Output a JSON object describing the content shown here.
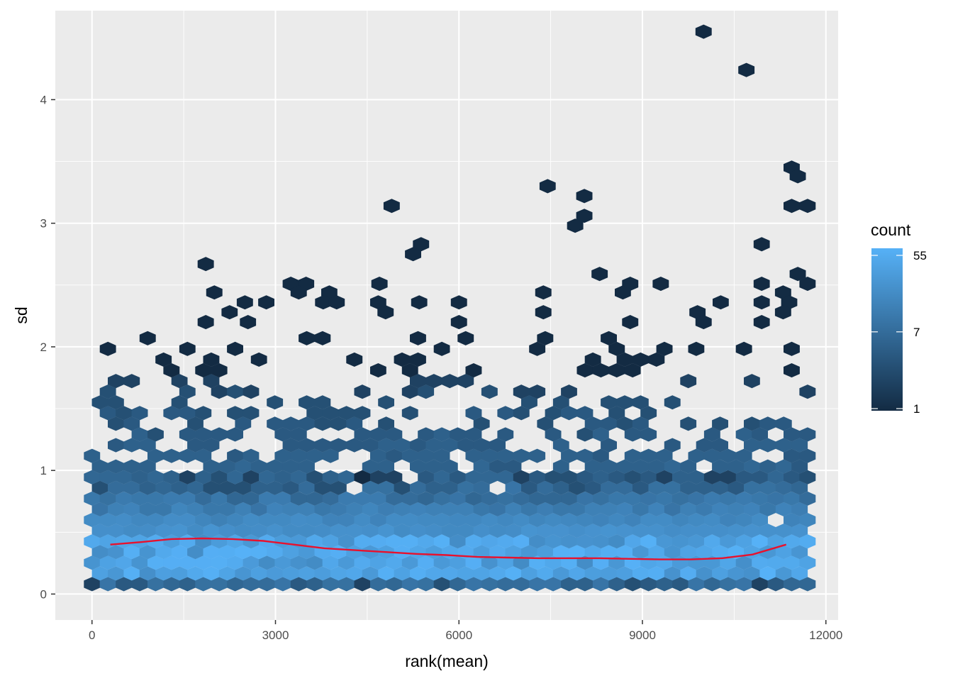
{
  "chart_data": {
    "type": "hexbin",
    "xlabel": "rank(mean)",
    "ylabel": "sd",
    "xlim": [
      -600,
      12200
    ],
    "ylim": [
      -0.21,
      4.72
    ],
    "x_ticks": [
      0,
      3000,
      6000,
      9000,
      12000
    ],
    "x_tick_labels": [
      "0",
      "3000",
      "6000",
      "9000",
      "12000"
    ],
    "y_ticks": [
      0,
      1,
      2,
      3,
      4
    ],
    "y_tick_labels": [
      "0",
      "1",
      "2",
      "3",
      "4"
    ],
    "grid": true,
    "legend": {
      "title": "count",
      "position": "right",
      "scale": "log",
      "min": 1,
      "max": 55,
      "breaks": [
        1,
        7,
        55
      ],
      "break_labels": [
        "1",
        "7",
        "55"
      ],
      "low_color": "#132B43",
      "high_color": "#56B1F7"
    },
    "colors": {
      "panel_background": "#EBEBEB",
      "grid_major": "#FFFFFF",
      "trend_line": "#E8112D"
    },
    "hex_density_profile": {
      "x_range": [
        0,
        11700
      ],
      "core_band_sd": [
        0.05,
        0.5
      ],
      "peak_count": 55,
      "dense_upper_sd": 1.0,
      "sparse_upper_sd": 1.8
    },
    "outliers": [
      {
        "x": 10000,
        "y": 4.55
      },
      {
        "x": 10700,
        "y": 4.24
      },
      {
        "x": 11440,
        "y": 3.45
      },
      {
        "x": 11540,
        "y": 3.38
      },
      {
        "x": 7450,
        "y": 3.3
      },
      {
        "x": 8050,
        "y": 3.22
      },
      {
        "x": 4900,
        "y": 3.14
      },
      {
        "x": 11440,
        "y": 3.14
      },
      {
        "x": 11700,
        "y": 3.14
      },
      {
        "x": 8050,
        "y": 3.06
      },
      {
        "x": 7900,
        "y": 2.98
      },
      {
        "x": 10950,
        "y": 2.83
      },
      {
        "x": 5380,
        "y": 2.83
      },
      {
        "x": 5250,
        "y": 2.75
      },
      {
        "x": 1860,
        "y": 2.67
      },
      {
        "x": 8300,
        "y": 2.59
      },
      {
        "x": 11540,
        "y": 2.59
      },
      {
        "x": 3250,
        "y": 2.51
      },
      {
        "x": 3500,
        "y": 2.51
      },
      {
        "x": 4700,
        "y": 2.51
      },
      {
        "x": 8800,
        "y": 2.51
      },
      {
        "x": 9300,
        "y": 2.51
      },
      {
        "x": 10950,
        "y": 2.51
      },
      {
        "x": 11700,
        "y": 2.51
      },
      {
        "x": 2000,
        "y": 2.44
      },
      {
        "x": 3380,
        "y": 2.44
      },
      {
        "x": 3880,
        "y": 2.44
      },
      {
        "x": 7380,
        "y": 2.44
      },
      {
        "x": 8680,
        "y": 2.44
      },
      {
        "x": 11300,
        "y": 2.44
      },
      {
        "x": 2500,
        "y": 2.36
      },
      {
        "x": 2850,
        "y": 2.36
      },
      {
        "x": 3780,
        "y": 2.36
      },
      {
        "x": 4000,
        "y": 2.36
      },
      {
        "x": 4680,
        "y": 2.36
      },
      {
        "x": 5350,
        "y": 2.36
      },
      {
        "x": 6000,
        "y": 2.36
      },
      {
        "x": 10280,
        "y": 2.36
      },
      {
        "x": 10950,
        "y": 2.36
      },
      {
        "x": 11400,
        "y": 2.36
      },
      {
        "x": 2250,
        "y": 2.28
      },
      {
        "x": 4800,
        "y": 2.28
      },
      {
        "x": 7380,
        "y": 2.28
      },
      {
        "x": 9900,
        "y": 2.28
      },
      {
        "x": 11300,
        "y": 2.28
      },
      {
        "x": 1860,
        "y": 2.2
      },
      {
        "x": 2550,
        "y": 2.2
      },
      {
        "x": 6000,
        "y": 2.2
      },
      {
        "x": 8800,
        "y": 2.2
      },
      {
        "x": 10000,
        "y": 2.2
      },
      {
        "x": 10950,
        "y": 2.2
      }
    ],
    "trend_line": {
      "x": [
        300,
        800,
        1300,
        1800,
        2300,
        2800,
        3300,
        3800,
        4300,
        4800,
        5300,
        5800,
        6300,
        6800,
        7300,
        7800,
        8300,
        8800,
        9300,
        9800,
        10300,
        10800,
        11350
      ],
      "y": [
        0.4,
        0.42,
        0.445,
        0.45,
        0.445,
        0.43,
        0.4,
        0.37,
        0.355,
        0.34,
        0.325,
        0.315,
        0.3,
        0.295,
        0.29,
        0.29,
        0.29,
        0.285,
        0.28,
        0.28,
        0.29,
        0.32,
        0.4
      ]
    }
  }
}
